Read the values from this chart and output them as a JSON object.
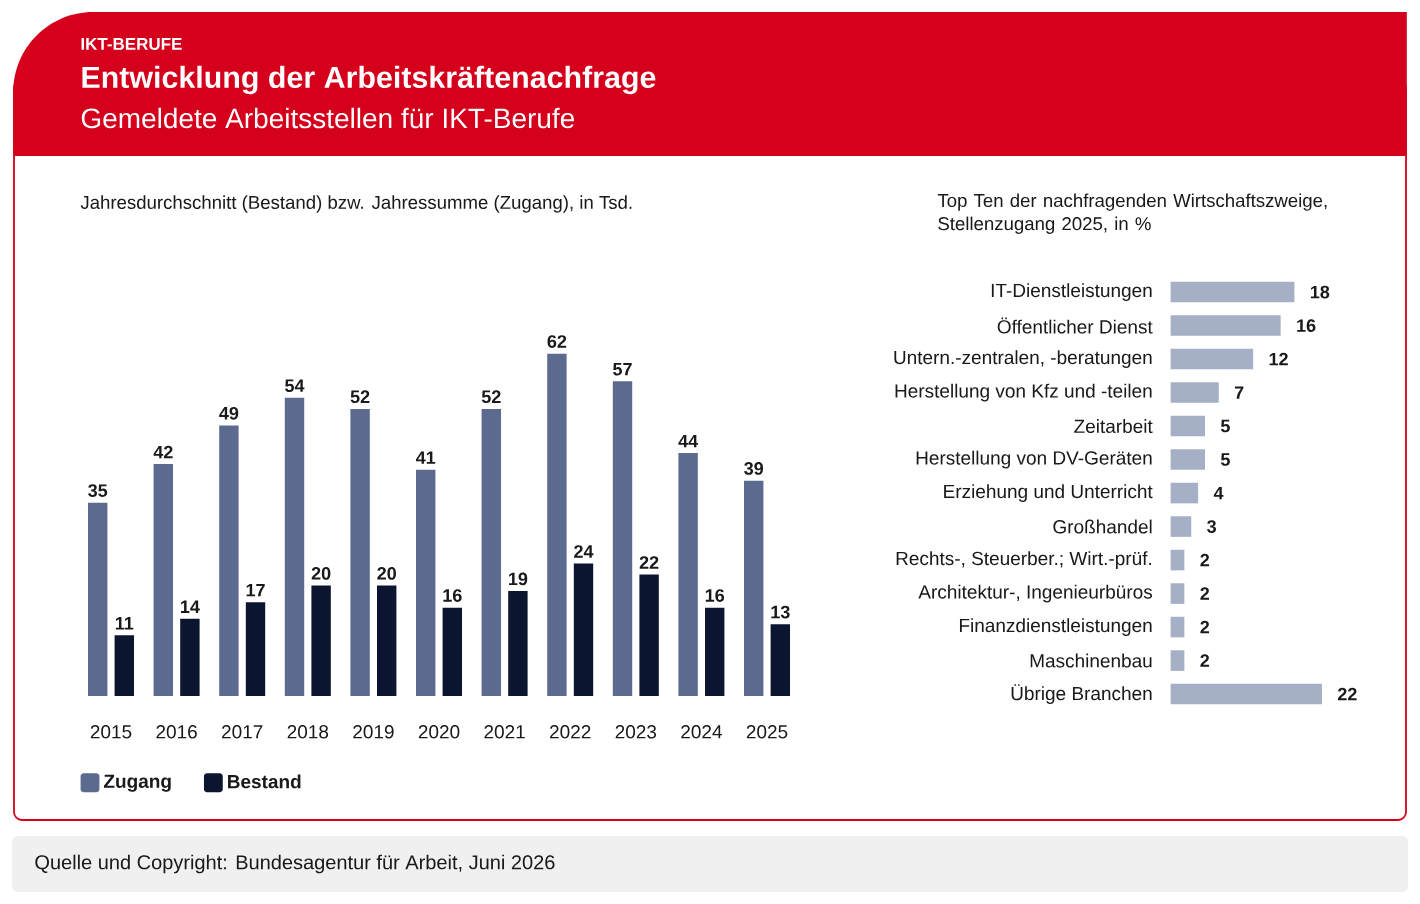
{
  "chart_data": [
    {
      "type": "bar",
      "title": "Entwicklung der Arbeitskräftenachfrage",
      "subtitle": "Gemeldete Arbeitsstellen für IKT-Berufe",
      "ylabel": "Jahresdurchschnitt (Bestand) bzw. Jahressumme (Zugang), in Tsd.",
      "annotations": [
        "IKT-BERUFE",
        "Quelle und Copyright: Bundesagentur für Arbeit, Juni 2026"
      ],
      "categories": [
        "2015",
        "2016",
        "2017",
        "2018",
        "2019",
        "2020",
        "2021",
        "2022",
        "2023",
        "2024",
        "2025"
      ],
      "series": [
        {
          "name": "Zugang",
          "color": "#5b6a8e",
          "values": [
            35,
            42,
            49,
            54,
            52,
            41,
            52,
            62,
            57,
            44,
            39
          ]
        },
        {
          "name": "Bestand",
          "color": "#0b1530",
          "values": [
            11,
            14,
            17,
            20,
            20,
            16,
            19,
            24,
            22,
            16,
            13
          ]
        }
      ],
      "data_labels": true,
      "legend": "bottom left",
      "tick_labels": "x"
    },
    {
      "type": "bar",
      "orientation": "horizontal",
      "title": "Top Ten der nachfragenden Wirtschaftszweige, Stellenzugang 2025, in %",
      "categories": [
        "IT-Dienstleistungen",
        "Öffentlicher Dienst",
        "Untern.-zentralen, -beratungen",
        "Herstellung von Kfz und -teilen",
        "Zeitarbeit",
        "Herstellung von DV-Geräten",
        "Erziehung und Unterricht",
        "Großhandel",
        "Rechts-, Steuerber.; Wirt.-prüf.",
        "Architektur-, Ingenieurbüros",
        "Finanzdienstleistungen",
        "Maschinenbau",
        "Übrige Branchen"
      ],
      "values": [
        18,
        16,
        12,
        7,
        5,
        5,
        4,
        3,
        2,
        2,
        2,
        2,
        22
      ],
      "color": "#a5b0c6",
      "data_labels": true,
      "tick_labels": "y"
    }
  ]
}
